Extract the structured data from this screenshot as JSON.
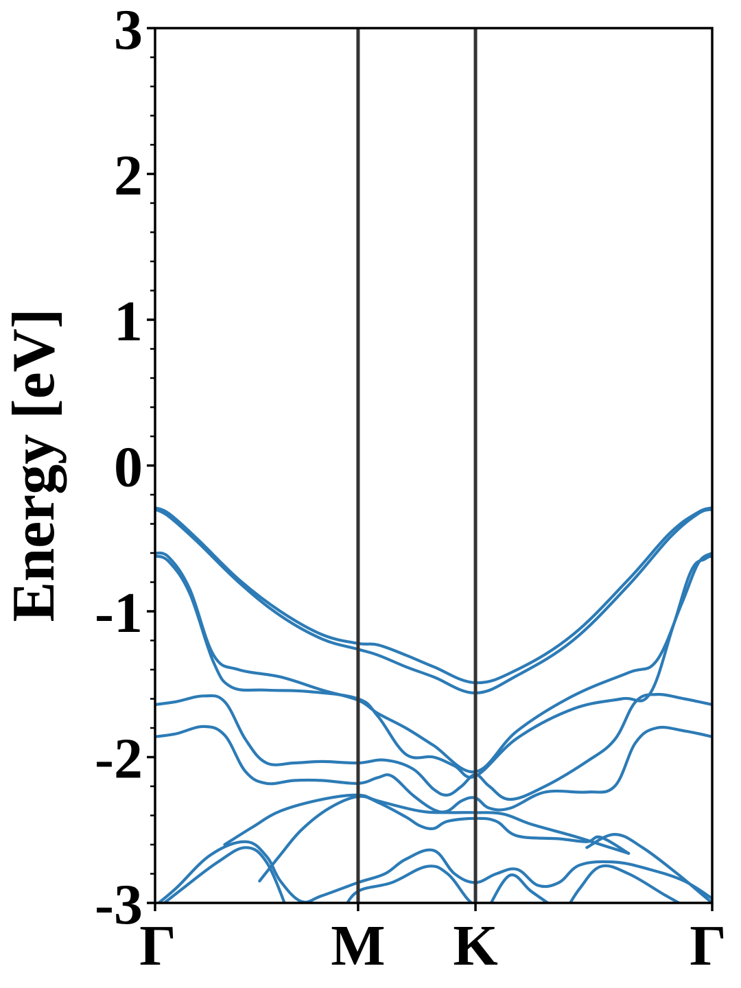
{
  "chart_data": {
    "type": "line",
    "title": "",
    "xlabel": "",
    "ylabel": "Energy [eV]",
    "ylim": [
      -3,
      3
    ],
    "xlim": [
      0,
      4.0
    ],
    "x_ticks": [
      {
        "value": 0,
        "label": "Γ"
      },
      {
        "value": 1.4577,
        "label": "M"
      },
      {
        "value": 2.3006,
        "label": "K"
      },
      {
        "value": 4.0,
        "label": "Γ"
      }
    ],
    "y_ticks": [
      {
        "value": -3,
        "label": "-3"
      },
      {
        "value": -2,
        "label": "-2"
      },
      {
        "value": -1,
        "label": "-1"
      },
      {
        "value": 0,
        "label": "0"
      },
      {
        "value": 1,
        "label": "1"
      },
      {
        "value": 2,
        "label": "2"
      },
      {
        "value": 3,
        "label": "3"
      }
    ],
    "y_minor_step": 0.2,
    "high_symmetry_lines": [
      1.4577,
      2.3006
    ],
    "grid": false,
    "legend": "none",
    "colors": {
      "bands": "#2c7bb6",
      "symmetry_lines": "#333333",
      "axes": "#000000"
    },
    "series": [
      {
        "points": [
          [
            0,
            -0.29
          ],
          [
            0.1,
            -0.33
          ],
          [
            0.3,
            -0.5
          ],
          [
            0.6,
            -0.78
          ],
          [
            0.9,
            -1.0
          ],
          [
            1.2,
            -1.16
          ],
          [
            1.4577,
            -1.22
          ],
          [
            1.6,
            -1.23
          ],
          [
            1.8,
            -1.3
          ],
          [
            2.0,
            -1.38
          ],
          [
            2.3006,
            -1.49
          ],
          [
            2.6,
            -1.4
          ],
          [
            3.0,
            -1.16
          ],
          [
            3.4,
            -0.78
          ],
          [
            3.7,
            -0.46
          ],
          [
            3.9,
            -0.32
          ],
          [
            4.0,
            -0.29
          ]
        ]
      },
      {
        "points": [
          [
            0,
            -0.3
          ],
          [
            0.1,
            -0.35
          ],
          [
            0.3,
            -0.52
          ],
          [
            0.6,
            -0.8
          ],
          [
            0.9,
            -1.03
          ],
          [
            1.2,
            -1.19
          ],
          [
            1.4577,
            -1.26
          ],
          [
            1.6,
            -1.3
          ],
          [
            1.8,
            -1.38
          ],
          [
            2.0,
            -1.45
          ],
          [
            2.3006,
            -1.56
          ],
          [
            2.6,
            -1.44
          ],
          [
            3.0,
            -1.2
          ],
          [
            3.4,
            -0.82
          ],
          [
            3.7,
            -0.49
          ],
          [
            3.9,
            -0.33
          ],
          [
            4.0,
            -0.3
          ]
        ]
      },
      {
        "points": [
          [
            0,
            -0.6
          ],
          [
            0.1,
            -0.63
          ],
          [
            0.25,
            -0.85
          ],
          [
            0.42,
            -1.3
          ],
          [
            0.6,
            -1.4
          ],
          [
            0.9,
            -1.45
          ],
          [
            1.2,
            -1.54
          ],
          [
            1.4577,
            -1.61
          ],
          [
            1.6,
            -1.7
          ],
          [
            1.8,
            -1.8
          ],
          [
            2.0,
            -1.92
          ],
          [
            2.3006,
            -2.1
          ],
          [
            2.6,
            -1.82
          ],
          [
            3.0,
            -1.58
          ],
          [
            3.4,
            -1.42
          ],
          [
            3.6,
            -1.34
          ],
          [
            3.78,
            -0.95
          ],
          [
            3.9,
            -0.67
          ],
          [
            4.0,
            -0.6
          ]
        ]
      },
      {
        "points": [
          [
            0,
            -0.62
          ],
          [
            0.1,
            -0.66
          ],
          [
            0.25,
            -0.88
          ],
          [
            0.42,
            -1.35
          ],
          [
            0.55,
            -1.52
          ],
          [
            0.8,
            -1.54
          ],
          [
            1.1,
            -1.55
          ],
          [
            1.4577,
            -1.6
          ],
          [
            1.6,
            -1.72
          ],
          [
            1.8,
            -1.98
          ],
          [
            2.0,
            -2.0
          ],
          [
            2.15,
            -2.06
          ],
          [
            2.3006,
            -2.13
          ],
          [
            2.6,
            -1.87
          ],
          [
            3.0,
            -1.67
          ],
          [
            3.35,
            -1.6
          ],
          [
            3.55,
            -1.57
          ],
          [
            3.72,
            -1.1
          ],
          [
            3.85,
            -0.72
          ],
          [
            3.95,
            -0.64
          ],
          [
            4.0,
            -0.62
          ]
        ]
      },
      {
        "points": [
          [
            0,
            -1.64
          ],
          [
            0.15,
            -1.62
          ],
          [
            0.35,
            -1.58
          ],
          [
            0.5,
            -1.62
          ],
          [
            0.65,
            -1.88
          ],
          [
            0.8,
            -2.04
          ],
          [
            1.0,
            -2.04
          ],
          [
            1.2,
            -2.03
          ],
          [
            1.4577,
            -2.04
          ],
          [
            1.65,
            -2.02
          ],
          [
            1.85,
            -2.08
          ],
          [
            2.0,
            -2.22
          ],
          [
            2.1,
            -2.26
          ],
          [
            2.2,
            -2.2
          ],
          [
            2.3006,
            -2.12
          ],
          [
            2.4,
            -2.2
          ],
          [
            2.55,
            -2.29
          ],
          [
            2.8,
            -2.2
          ],
          [
            3.1,
            -2.03
          ],
          [
            3.3,
            -1.88
          ],
          [
            3.45,
            -1.62
          ],
          [
            3.6,
            -1.57
          ],
          [
            3.8,
            -1.6
          ],
          [
            4.0,
            -1.64
          ]
        ]
      },
      {
        "points": [
          [
            0,
            -1.86
          ],
          [
            0.15,
            -1.84
          ],
          [
            0.35,
            -1.79
          ],
          [
            0.5,
            -1.85
          ],
          [
            0.65,
            -2.1
          ],
          [
            0.8,
            -2.18
          ],
          [
            1.0,
            -2.16
          ],
          [
            1.2,
            -2.16
          ],
          [
            1.4577,
            -2.18
          ],
          [
            1.6,
            -2.14
          ],
          [
            1.7,
            -2.13
          ],
          [
            1.85,
            -2.26
          ],
          [
            2.0,
            -2.36
          ],
          [
            2.1,
            -2.37
          ],
          [
            2.2,
            -2.3
          ],
          [
            2.3006,
            -2.28
          ],
          [
            2.4,
            -2.35
          ],
          [
            2.55,
            -2.35
          ],
          [
            2.8,
            -2.24
          ],
          [
            3.1,
            -2.24
          ],
          [
            3.3,
            -2.2
          ],
          [
            3.45,
            -1.9
          ],
          [
            3.6,
            -1.8
          ],
          [
            3.8,
            -1.82
          ],
          [
            4.0,
            -1.86
          ]
        ]
      },
      {
        "points": [
          [
            0.5,
            -2.6
          ],
          [
            0.7,
            -2.48
          ],
          [
            0.9,
            -2.37
          ],
          [
            1.2,
            -2.29
          ],
          [
            1.4577,
            -2.26
          ],
          [
            1.6,
            -2.3
          ],
          [
            1.9,
            -2.37
          ],
          [
            2.1,
            -2.38
          ],
          [
            2.3006,
            -2.38
          ],
          [
            2.5,
            -2.39
          ],
          [
            2.7,
            -2.46
          ],
          [
            3.0,
            -2.54
          ],
          [
            3.2,
            -2.6
          ],
          [
            3.4,
            -2.66
          ]
        ]
      },
      {
        "points": [
          [
            0.75,
            -2.85
          ],
          [
            0.9,
            -2.67
          ],
          [
            1.05,
            -2.5
          ],
          [
            1.25,
            -2.35
          ],
          [
            1.4577,
            -2.27
          ],
          [
            1.6,
            -2.31
          ],
          [
            1.8,
            -2.41
          ],
          [
            1.9,
            -2.47
          ],
          [
            2.0,
            -2.49
          ],
          [
            2.1,
            -2.44
          ],
          [
            2.3006,
            -2.42
          ],
          [
            2.45,
            -2.44
          ],
          [
            2.6,
            -2.54
          ],
          [
            2.9,
            -2.56
          ],
          [
            3.1,
            -2.58
          ],
          [
            3.2,
            -2.55
          ],
          [
            3.4,
            -2.66
          ]
        ]
      },
      {
        "points": [
          [
            0,
            -3.02
          ],
          [
            0.15,
            -2.9
          ],
          [
            0.4,
            -2.67
          ],
          [
            0.65,
            -2.58
          ],
          [
            0.8,
            -2.68
          ],
          [
            0.9,
            -2.85
          ],
          [
            1.05,
            -2.99
          ],
          [
            1.2,
            -2.95
          ],
          [
            1.4577,
            -2.86
          ],
          [
            1.65,
            -2.8
          ],
          [
            1.8,
            -2.7
          ],
          [
            2.0,
            -2.64
          ],
          [
            2.15,
            -2.8
          ],
          [
            2.3006,
            -2.86
          ],
          [
            2.45,
            -2.8
          ],
          [
            2.6,
            -2.77
          ],
          [
            2.75,
            -2.88
          ],
          [
            2.9,
            -2.86
          ],
          [
            3.05,
            -2.74
          ],
          [
            3.3,
            -2.72
          ],
          [
            3.55,
            -2.77
          ],
          [
            3.8,
            -2.85
          ],
          [
            4.0,
            -2.97
          ]
        ]
      },
      {
        "points": [
          [
            0,
            -3.05
          ],
          [
            0.2,
            -2.9
          ],
          [
            0.45,
            -2.72
          ],
          [
            0.65,
            -2.62
          ],
          [
            0.8,
            -2.72
          ],
          [
            0.95,
            -3.05
          ]
        ]
      },
      {
        "points": [
          [
            1.35,
            -3.05
          ],
          [
            1.4577,
            -2.92
          ],
          [
            1.7,
            -2.86
          ],
          [
            1.95,
            -2.75
          ],
          [
            2.1,
            -2.8
          ],
          [
            2.25,
            -2.98
          ],
          [
            2.35,
            -3.05
          ]
        ]
      },
      {
        "points": [
          [
            2.4,
            -3.02
          ],
          [
            2.55,
            -2.81
          ],
          [
            2.7,
            -2.92
          ],
          [
            2.85,
            -3.02
          ]
        ]
      },
      {
        "points": [
          [
            2.95,
            -3.05
          ],
          [
            3.05,
            -2.9
          ],
          [
            3.2,
            -2.75
          ],
          [
            3.4,
            -2.8
          ],
          [
            3.65,
            -2.94
          ],
          [
            3.8,
            -3.02
          ]
        ]
      },
      {
        "points": [
          [
            3.1,
            -2.62
          ],
          [
            3.3,
            -2.53
          ],
          [
            3.5,
            -2.62
          ],
          [
            3.75,
            -2.8
          ],
          [
            3.9,
            -2.92
          ],
          [
            4.0,
            -3.0
          ]
        ]
      }
    ]
  }
}
